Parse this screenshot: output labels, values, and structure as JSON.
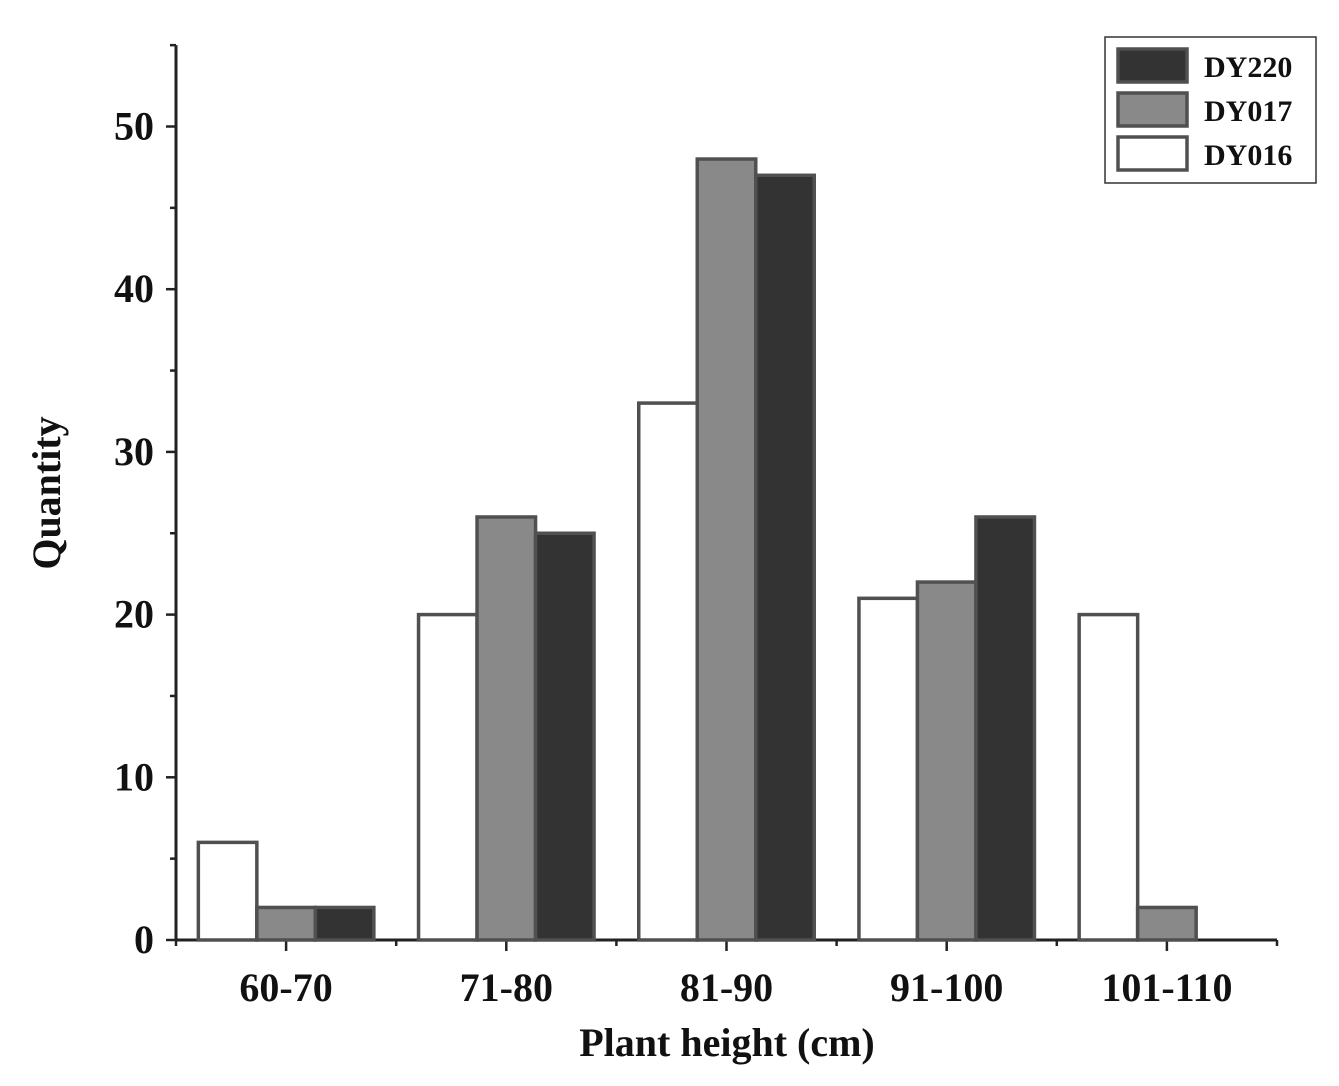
{
  "chart_data": {
    "type": "bar",
    "title": "",
    "xlabel": "Plant height (cm)",
    "ylabel": "Quantity",
    "ylim": [
      0,
      55
    ],
    "yticks": [
      "0",
      "10",
      "20",
      "30",
      "40",
      "50"
    ],
    "categories": [
      "60-70",
      "71-80",
      "81-90",
      "91-100",
      "101-110"
    ],
    "series": [
      {
        "name": "DY016",
        "color": "#ffffff",
        "values": [
          6,
          20,
          33,
          21,
          20
        ]
      },
      {
        "name": "DY017",
        "color": "#898989",
        "values": [
          2,
          26,
          48,
          22,
          2
        ]
      },
      {
        "name": "DY220",
        "color": "#333333",
        "values": [
          2,
          25,
          47,
          26,
          0
        ]
      }
    ],
    "legend": {
      "position": "top-right",
      "order": [
        "DY220",
        "DY017",
        "DY016"
      ]
    },
    "stroke_color": "#505050",
    "axis_color": "#222222"
  }
}
